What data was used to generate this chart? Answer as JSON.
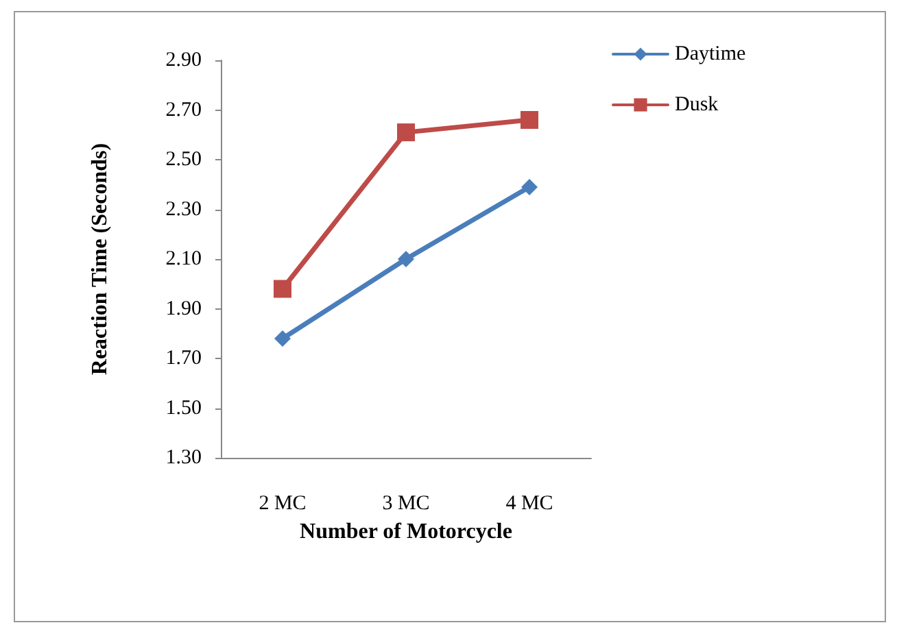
{
  "chart_data": {
    "type": "line",
    "xlabel": "Number of Motorcycle",
    "ylabel": "Reaction Time (Seconds)",
    "categories": [
      "2 MC",
      "3 MC",
      "4 MC"
    ],
    "series": [
      {
        "name": "Daytime",
        "color": "#4a7ebb",
        "marker": "diamond",
        "values": [
          1.78,
          2.1,
          2.39
        ]
      },
      {
        "name": "Dusk",
        "color": "#be4b48",
        "marker": "square",
        "values": [
          1.98,
          2.61,
          2.66
        ]
      }
    ],
    "ylim": [
      1.3,
      2.9
    ],
    "yticks": [
      {
        "value": 1.3,
        "label": "1.30"
      },
      {
        "value": 1.5,
        "label": "1.50"
      },
      {
        "value": 1.7,
        "label": "1.70"
      },
      {
        "value": 1.9,
        "label": "1.90"
      },
      {
        "value": 2.1,
        "label": "2.10"
      },
      {
        "value": 2.3,
        "label": "2.30"
      },
      {
        "value": 2.5,
        "label": "2.50"
      },
      {
        "value": 2.7,
        "label": "2.70"
      },
      {
        "value": 2.9,
        "label": "2.90"
      }
    ],
    "grid": false,
    "legend": "top right",
    "line_style": "solid"
  }
}
